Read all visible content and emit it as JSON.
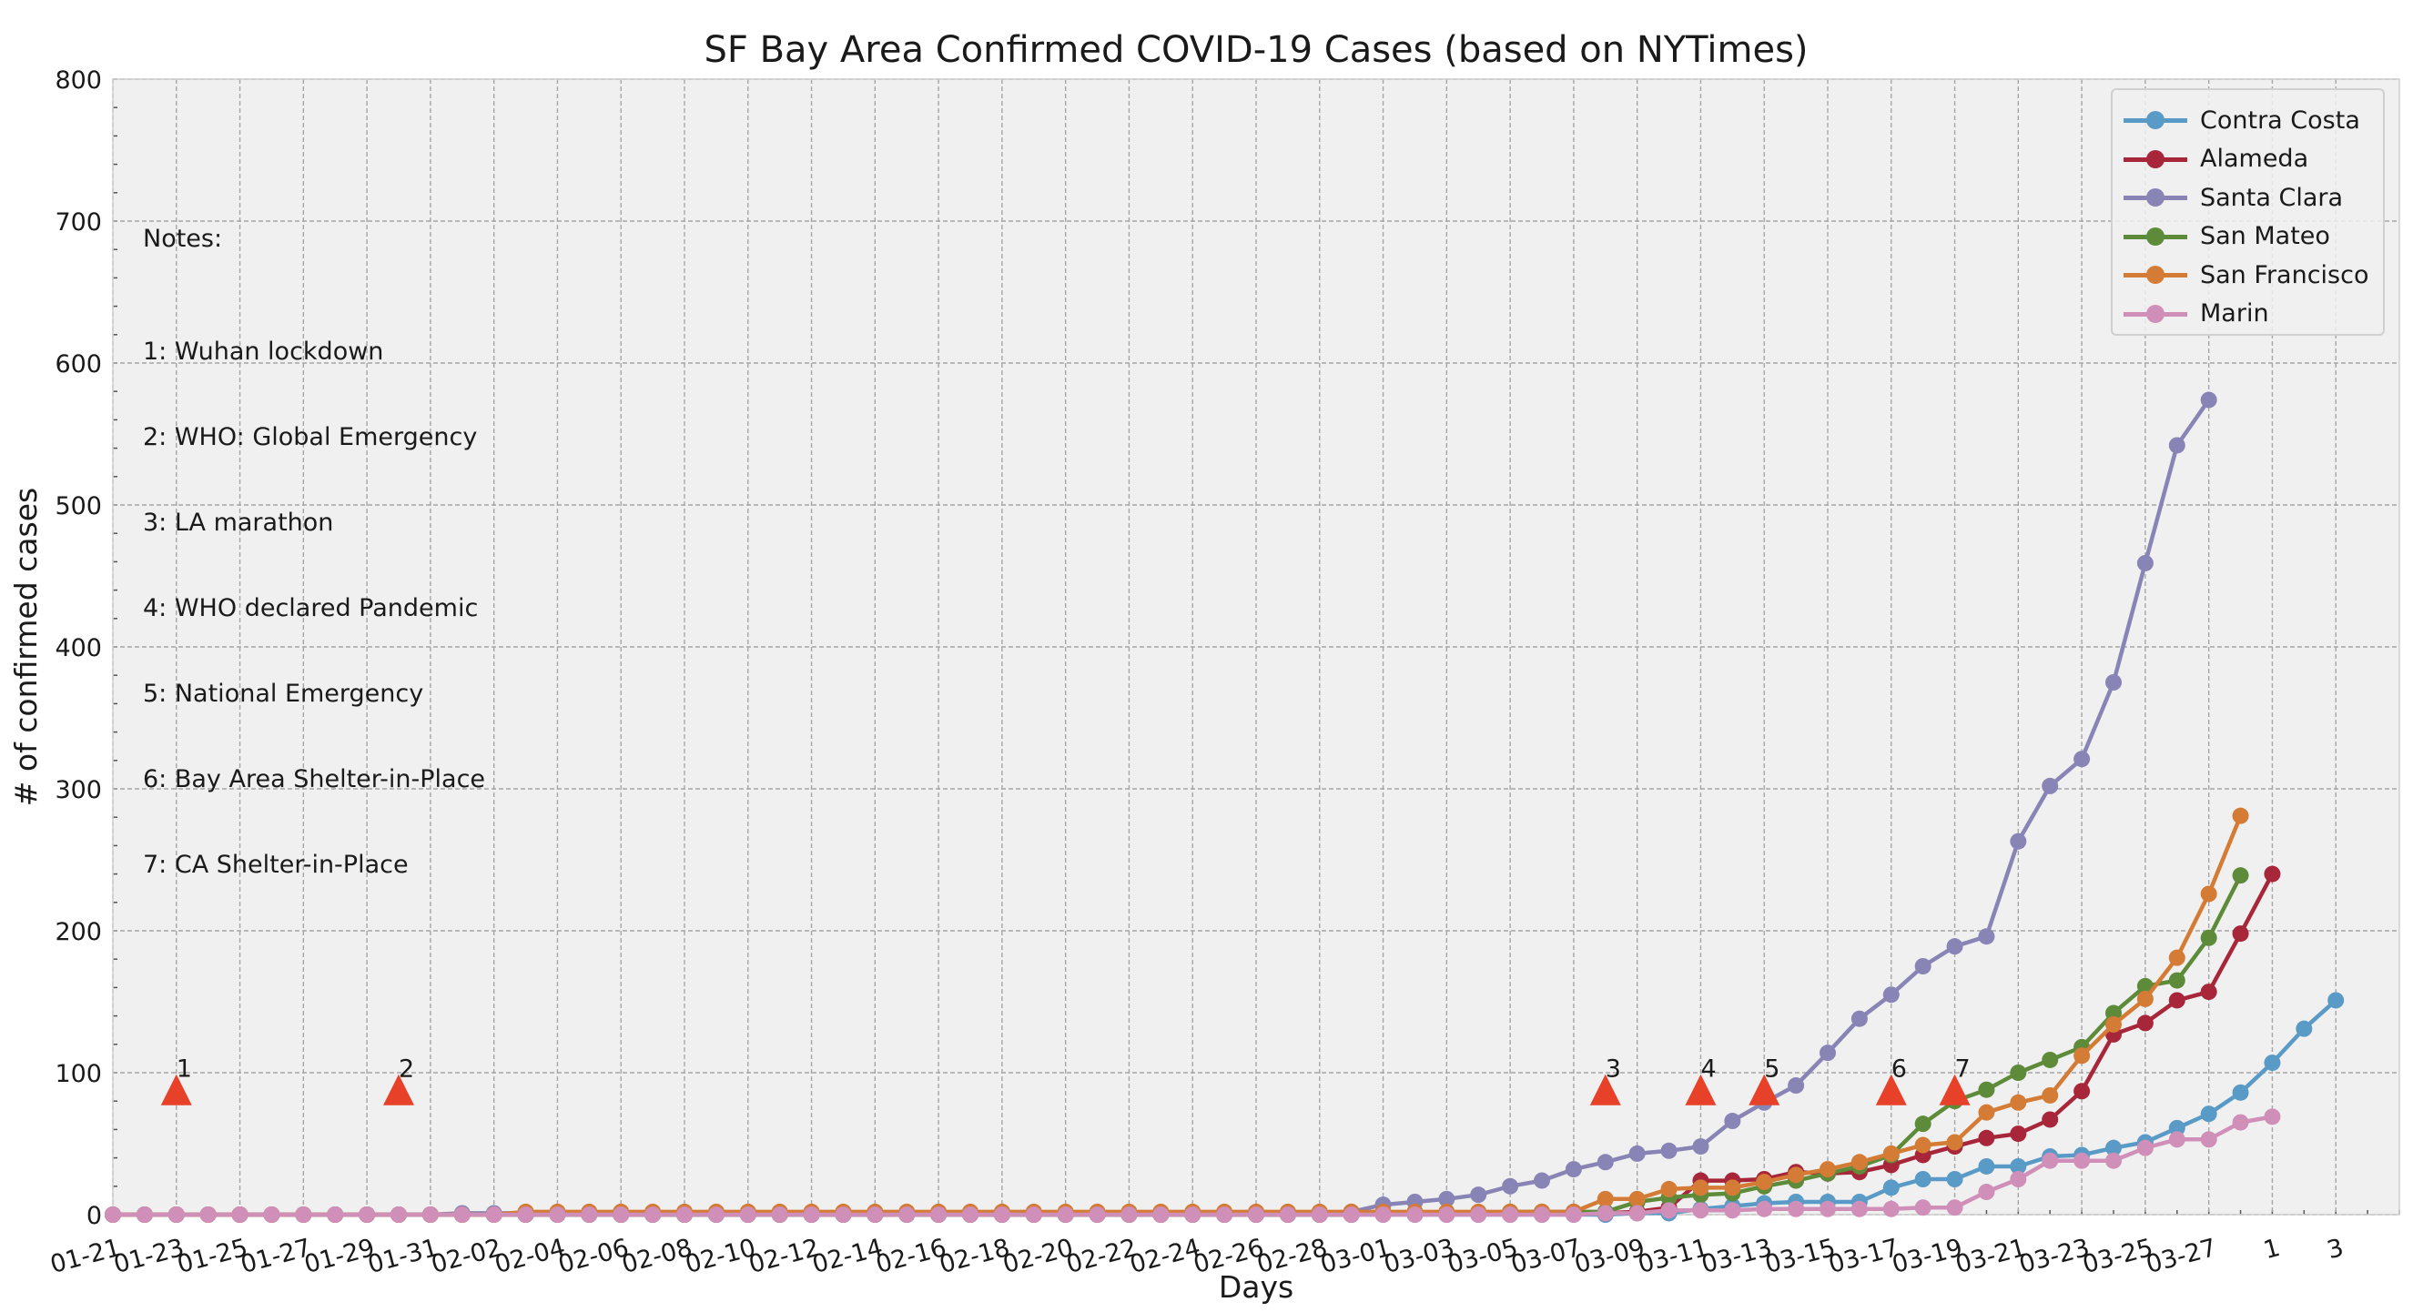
{
  "chart_data": {
    "type": "line",
    "title": "SF Bay Area Confirmed COVID-19 Cases (based on NYTimes)",
    "xlabel": "Days",
    "ylabel": "# of confirmed cases",
    "ylim": [
      0,
      800
    ],
    "yticks": [
      "0",
      "100",
      "200",
      "300",
      "400",
      "500",
      "600",
      "700",
      "800"
    ],
    "xlim": [
      0,
      72
    ],
    "xtick_labels": [
      "01-21",
      "01-23",
      "01-25",
      "01-27",
      "01-29",
      "01-31",
      "02-02",
      "02-04",
      "02-06",
      "02-08",
      "02-10",
      "02-12",
      "02-14",
      "02-16",
      "02-18",
      "02-20",
      "02-22",
      "02-24",
      "02-26",
      "02-28",
      "03-01",
      "03-03",
      "03-05",
      "03-07",
      "03-09",
      "03-11",
      "03-13",
      "03-15",
      "03-17",
      "03-19",
      "03-21",
      "03-23",
      "03-25",
      "03-27",
      "1",
      "3"
    ],
    "grid": true,
    "legend_position": "top-right",
    "series": [
      {
        "name": "Contra Costa",
        "color": "#5a9ac6",
        "start_day": 0,
        "values": [
          0,
          0,
          0,
          0,
          0,
          0,
          0,
          0,
          0,
          0,
          0,
          0,
          0,
          0,
          0,
          0,
          0,
          0,
          0,
          0,
          0,
          0,
          0,
          0,
          0,
          0,
          0,
          0,
          0,
          0,
          0,
          0,
          0,
          0,
          0,
          0,
          0,
          0,
          0,
          0,
          0,
          0,
          0,
          0,
          0,
          0,
          0,
          0,
          1,
          1,
          4,
          6,
          8,
          9,
          9,
          9,
          19,
          25,
          25,
          34,
          34,
          41,
          42,
          47,
          51,
          61,
          71,
          86,
          107,
          131,
          151
        ]
      },
      {
        "name": "Alameda",
        "color": "#a8263a",
        "start_day": 0,
        "values": [
          0,
          0,
          0,
          0,
          0,
          0,
          0,
          0,
          0,
          0,
          0,
          0,
          0,
          0,
          0,
          0,
          0,
          0,
          0,
          0,
          0,
          0,
          0,
          0,
          0,
          0,
          0,
          0,
          0,
          0,
          0,
          0,
          0,
          0,
          0,
          0,
          0,
          0,
          0,
          0,
          1,
          1,
          1,
          1,
          1,
          1,
          1,
          1,
          2,
          5,
          24,
          24,
          25,
          30,
          29,
          30,
          35,
          42,
          48,
          54,
          57,
          67,
          87,
          127,
          135,
          151,
          157,
          198,
          240
        ]
      },
      {
        "name": "Santa Clara",
        "color": "#8884b5",
        "start_day": 0,
        "values": [
          0,
          0,
          0,
          0,
          0,
          0,
          0,
          0,
          0,
          0,
          0,
          1,
          1,
          1,
          1,
          1,
          1,
          1,
          1,
          1,
          1,
          1,
          1,
          1,
          1,
          1,
          1,
          1,
          1,
          1,
          1,
          1,
          1,
          1,
          1,
          1,
          1,
          1,
          1,
          2,
          7,
          9,
          11,
          14,
          20,
          24,
          32,
          37,
          43,
          45,
          48,
          66,
          79,
          91,
          114,
          138,
          155,
          175,
          189,
          196,
          263,
          302,
          321,
          375,
          459,
          542,
          574
        ]
      },
      {
        "name": "San Mateo",
        "color": "#5d8b3a",
        "start_day": 0,
        "values": [
          0,
          0,
          0,
          0,
          0,
          0,
          0,
          0,
          0,
          0,
          0,
          0,
          0,
          0,
          0,
          0,
          0,
          0,
          0,
          0,
          0,
          0,
          0,
          0,
          0,
          0,
          0,
          0,
          0,
          0,
          0,
          0,
          0,
          0,
          0,
          0,
          0,
          0,
          0,
          0,
          1,
          1,
          1,
          1,
          2,
          2,
          2,
          2,
          9,
          12,
          14,
          15,
          20,
          24,
          29,
          34,
          42,
          64,
          80,
          88,
          100,
          109,
          118,
          142,
          161,
          165,
          195,
          239
        ]
      },
      {
        "name": "San Francisco",
        "color": "#d47b35",
        "start_day": 0,
        "values": [
          0,
          0,
          0,
          0,
          0,
          0,
          0,
          0,
          0,
          0,
          0,
          0,
          0,
          2,
          2,
          2,
          2,
          2,
          2,
          2,
          2,
          2,
          2,
          2,
          2,
          2,
          2,
          2,
          2,
          2,
          2,
          2,
          2,
          2,
          2,
          2,
          2,
          2,
          2,
          2,
          2,
          2,
          2,
          2,
          2,
          2,
          2,
          11,
          11,
          18,
          19,
          19,
          23,
          28,
          32,
          37,
          43,
          49,
          51,
          72,
          79,
          84,
          112,
          134,
          152,
          181,
          226,
          281
        ]
      },
      {
        "name": "Marin",
        "color": "#d08fb8",
        "start_day": 0,
        "values": [
          0,
          0,
          0,
          0,
          0,
          0,
          0,
          0,
          0,
          0,
          0,
          0,
          0,
          0,
          0,
          0,
          0,
          0,
          0,
          0,
          0,
          0,
          0,
          0,
          0,
          0,
          0,
          0,
          0,
          0,
          0,
          0,
          0,
          0,
          0,
          0,
          0,
          0,
          0,
          0,
          0,
          0,
          0,
          0,
          0,
          0,
          0,
          1,
          1,
          3,
          3,
          3,
          4,
          4,
          4,
          4,
          4,
          5,
          5,
          16,
          25,
          38,
          38,
          38,
          47,
          53,
          53,
          65,
          69
        ]
      }
    ],
    "event_markers": [
      {
        "label": "1",
        "day": 2,
        "value": 88
      },
      {
        "label": "2",
        "day": 9,
        "value": 88
      },
      {
        "label": "3",
        "day": 47,
        "value": 88
      },
      {
        "label": "4",
        "day": 50,
        "value": 88
      },
      {
        "label": "5",
        "day": 52,
        "value": 88
      },
      {
        "label": "6",
        "day": 56,
        "value": 88
      },
      {
        "label": "7",
        "day": 58,
        "value": 88
      }
    ],
    "marker_color": "#e8412a",
    "notes_title": "Notes:",
    "notes": [
      "1: Wuhan lockdown",
      "2: WHO: Global Emergency",
      "3: LA marathon",
      "4: WHO declared Pandemic",
      "5: National Emergency",
      "6: Bay Area Shelter-in-Place",
      "7: CA Shelter-in-Place"
    ]
  }
}
